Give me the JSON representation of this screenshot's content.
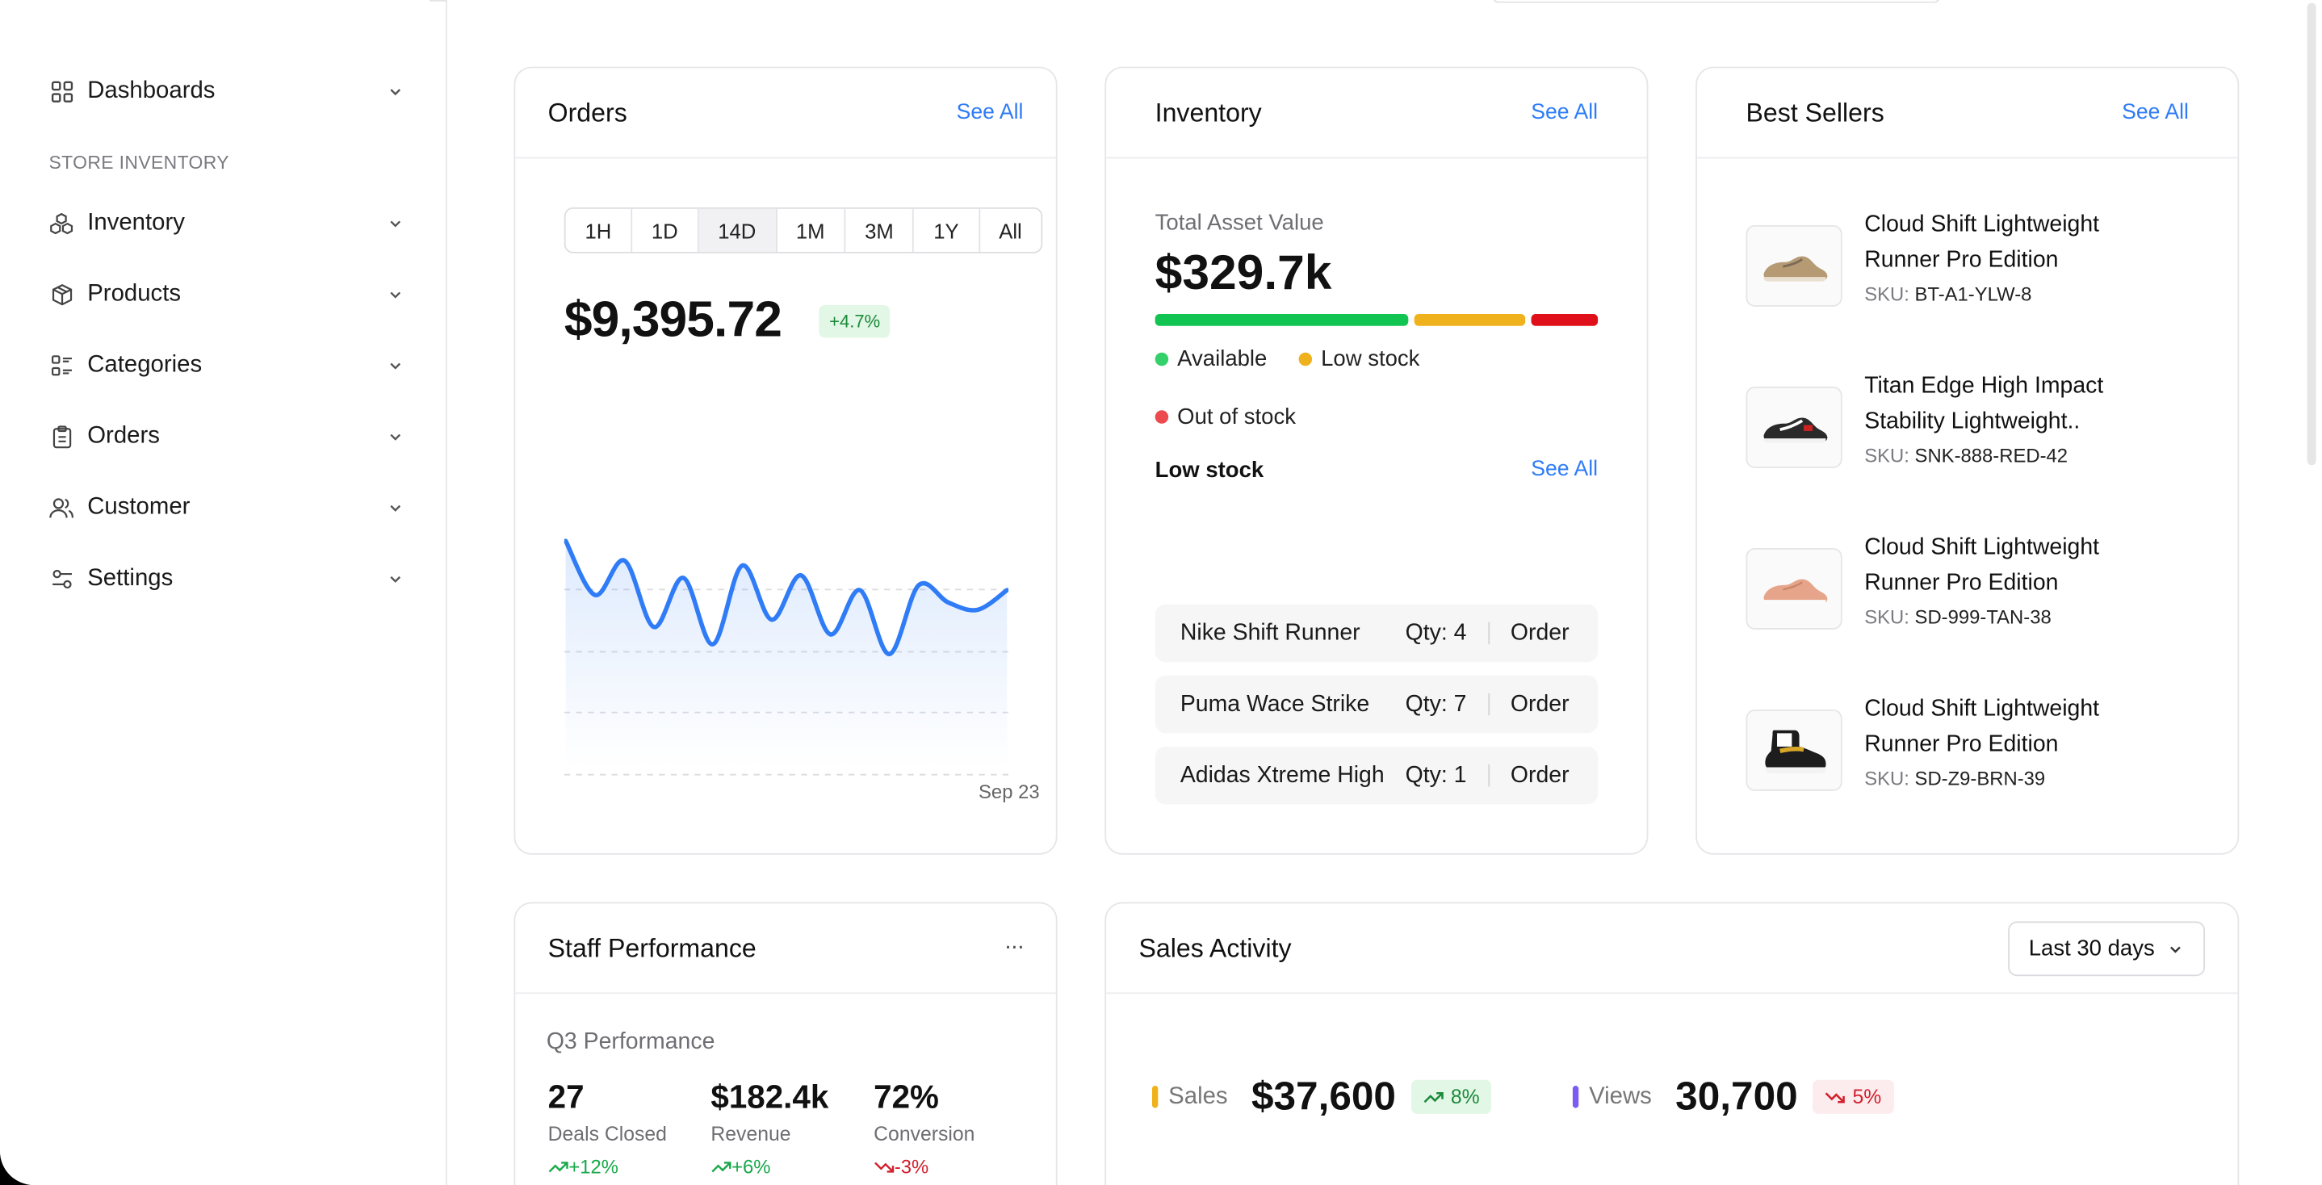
{
  "sidebar": {
    "section_label": "STORE INVENTORY",
    "items": [
      {
        "label": "Dashboards",
        "icon": "grid-icon"
      },
      {
        "label": "Inventory",
        "icon": "boxes-icon"
      },
      {
        "label": "Products",
        "icon": "package-icon"
      },
      {
        "label": "Categories",
        "icon": "list-icon"
      },
      {
        "label": "Orders",
        "icon": "clipboard-icon"
      },
      {
        "label": "Customer",
        "icon": "users-icon"
      },
      {
        "label": "Settings",
        "icon": "sliders-icon"
      }
    ]
  },
  "orders": {
    "title": "Orders",
    "see_all": "See All",
    "ranges": [
      "1H",
      "1D",
      "14D",
      "1M",
      "3M",
      "1Y",
      "All"
    ],
    "active_range": "14D",
    "value": "$9,395.72",
    "change": "+4.7%",
    "date_label": "Sep 23"
  },
  "inventory": {
    "title": "Inventory",
    "see_all": "See All",
    "total_label": "Total Asset Value",
    "total_value": "$329.7k",
    "legend": {
      "available": "Available",
      "low": "Low stock",
      "out": "Out of stock"
    },
    "colors": {
      "available": "#12c552",
      "low": "#f0b21c",
      "out": "#e0101a"
    },
    "low_stock_title": "Low stock",
    "low_stock_see_all": "See All",
    "low_stock_items": [
      {
        "name": "Nike Shift Runner",
        "qty": "Qty: 4",
        "action": "Order"
      },
      {
        "name": "Puma Wace Strike",
        "qty": "Qty: 7",
        "action": "Order"
      },
      {
        "name": "Adidas Xtreme High",
        "qty": "Qty: 1",
        "action": "Order"
      }
    ]
  },
  "best_sellers": {
    "title": "Best Sellers",
    "see_all": "See All",
    "sku_prefix": "SKU:",
    "items": [
      {
        "name": "Cloud Shift Lightweight Runner Pro Edition",
        "sku": "BT-A1-YLW-8"
      },
      {
        "name": "Titan Edge High Impact Stability Lightweight..",
        "sku": "SNK-888-RED-42"
      },
      {
        "name": "Cloud Shift Lightweight Runner Pro Edition",
        "sku": "SD-999-TAN-38"
      },
      {
        "name": "Cloud Shift Lightweight Runner Pro Edition",
        "sku": "SD-Z9-BRN-39"
      }
    ]
  },
  "staff": {
    "title": "Staff Performance",
    "more": "···",
    "period": "Q3 Performance",
    "metrics": [
      {
        "value": "27",
        "label": "Deals Closed",
        "delta": "+12%",
        "trend": "up"
      },
      {
        "value": "$182.4k",
        "label": "Revenue",
        "delta": "+6%",
        "trend": "up"
      },
      {
        "value": "72%",
        "label": "Conversion",
        "delta": "-3%",
        "trend": "down"
      }
    ]
  },
  "sales": {
    "title": "Sales Activity",
    "range": "Last 30 days",
    "sales_label": "Sales",
    "sales_value": "$37,600",
    "sales_delta": "8%",
    "views_label": "Views",
    "views_value": "30,700",
    "views_delta": "5%"
  },
  "chart_data": {
    "type": "line",
    "title": "",
    "xlabel": "",
    "ylabel": "",
    "x": [
      0,
      1,
      2,
      3,
      4,
      5,
      6,
      7,
      8,
      9,
      10,
      11,
      12,
      13,
      14,
      15
    ],
    "series": [
      {
        "values": [
          80,
          58,
          72,
          45,
          65,
          38,
          70,
          48,
          66,
          42,
          60,
          34,
          62,
          55,
          52,
          60
        ]
      }
    ],
    "ylim": [
      0,
      100
    ],
    "grid": true,
    "color": "#2f7cf6"
  }
}
